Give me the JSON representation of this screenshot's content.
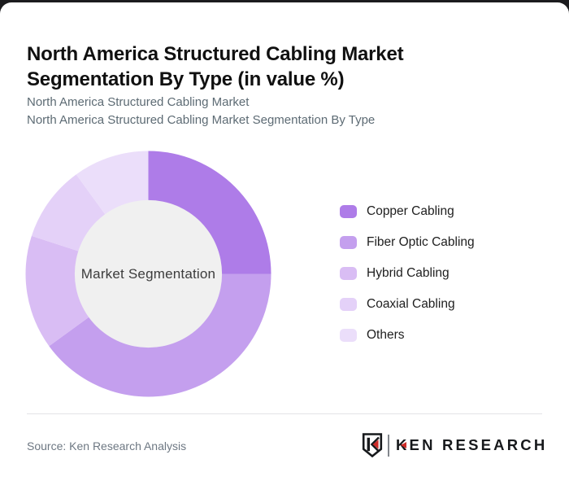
{
  "page": {
    "title_line1": "North America Structured Cabling Market",
    "title_line2": "Segmentation By Type (in value %)",
    "subtitle_line1": "North America Structured Cabling Market",
    "subtitle_line2": "North America Structured Cabling Market Segmentation By Type"
  },
  "chart_data": {
    "type": "pie",
    "subtype": "donut",
    "title": "North America Structured Cabling Market Segmentation By Type (in value %)",
    "center_label": "Market Segmentation",
    "categories": [
      "Copper Cabling",
      "Fiber Optic Cabling",
      "Hybrid Cabling",
      "Coaxial Cabling",
      "Others"
    ],
    "values": [
      25,
      40,
      15,
      10,
      10
    ],
    "unit": "value %",
    "colors": [
      "#ae7ce8",
      "#c49fee",
      "#d9bdf4",
      "#e4d1f8",
      "#ebdefa"
    ],
    "start_angle_deg_from_top": 0,
    "direction": "clockwise",
    "inner_radius_ratio": 0.6,
    "center_fill": "#f0f0f0",
    "legend_position": "right"
  },
  "footer": {
    "source": "Source: Ken Research Analysis",
    "logo_text": "KEN RESEARCH"
  },
  "theme": {
    "page_background": "#1c1c1e",
    "card_background": "#ffffff",
    "title_color": "#101010",
    "subtitle_color": "#5d6b74",
    "divider_color": "#e3e3e6",
    "source_color": "#6e7883",
    "logo_red": "#cc2b28",
    "logo_black": "#17191c"
  }
}
